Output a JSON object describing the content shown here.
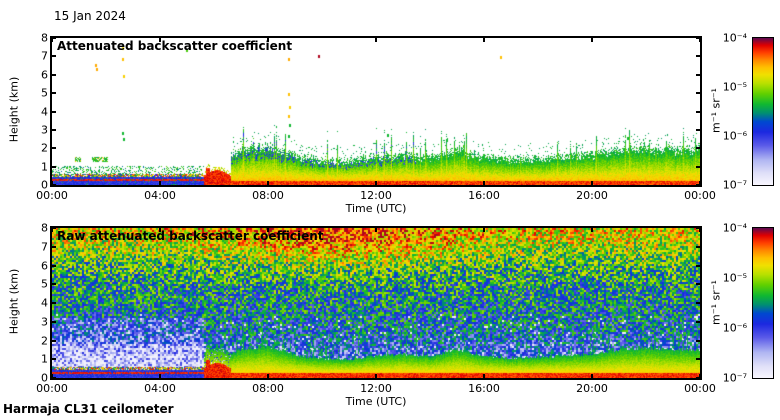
{
  "page": {
    "date_label": "15 Jan 2024",
    "footer_label": "Harmaja CL31 ceilometer",
    "background": "#ffffff"
  },
  "axes": {
    "x_label": "Time (UTC)",
    "y_label": "Height (km)",
    "x_ticks": [
      "00:00",
      "04:00",
      "08:00",
      "12:00",
      "16:00",
      "20:00",
      "00:00"
    ],
    "y_ticks": [
      "0",
      "1",
      "2",
      "3",
      "4",
      "5",
      "6",
      "7",
      "8"
    ]
  },
  "colorbar": {
    "tick_labels": [
      "10⁻⁴",
      "10⁻⁵",
      "10⁻⁶",
      "10⁻⁷"
    ],
    "unit_label": "m⁻¹ sr⁻¹"
  },
  "panels": [
    {
      "title": "Attenuated backscatter coefficient"
    },
    {
      "title": "Raw attenuated backscatter coefficient"
    }
  ],
  "chart_data": [
    {
      "type": "heatmap",
      "title": "Attenuated backscatter coefficient",
      "xlabel": "Time (UTC)",
      "ylabel": "Height (km)",
      "x_range_hours": [
        0,
        24
      ],
      "x_tick_labels": [
        "00:00",
        "04:00",
        "08:00",
        "12:00",
        "16:00",
        "20:00",
        "00:00"
      ],
      "y_range_km": [
        0,
        8
      ],
      "color_scale": {
        "type": "log",
        "min": 1e-07,
        "max": 0.0001,
        "unit": "m⁻¹ sr⁻¹"
      },
      "colormap_stops": [
        [
          0.0,
          "#f8f6fe"
        ],
        [
          0.08,
          "#e0e0f8"
        ],
        [
          0.17,
          "#b0b6f2"
        ],
        [
          0.27,
          "#5a5ae8"
        ],
        [
          0.36,
          "#1c28e0"
        ],
        [
          0.43,
          "#0048d0"
        ],
        [
          0.49,
          "#009070"
        ],
        [
          0.55,
          "#10b830"
        ],
        [
          0.62,
          "#60d000"
        ],
        [
          0.69,
          "#b8e000"
        ],
        [
          0.75,
          "#f0e000"
        ],
        [
          0.8,
          "#ffc000"
        ],
        [
          0.85,
          "#ff8800"
        ],
        [
          0.9,
          "#ff4000"
        ],
        [
          0.95,
          "#e00000"
        ],
        [
          1.0,
          "#5c0a50"
        ]
      ],
      "hours": [
        0,
        1,
        2,
        3,
        4,
        5,
        6,
        7,
        8,
        9,
        10,
        11,
        12,
        13,
        14,
        15,
        16,
        17,
        18,
        19,
        20,
        21,
        22,
        23,
        24
      ],
      "boundary_layer_top_km": [
        0.95,
        0.95,
        0.95,
        0.9,
        0.9,
        0.85,
        1.0,
        1.8,
        2.0,
        1.45,
        1.2,
        1.15,
        1.4,
        1.5,
        1.35,
        1.8,
        1.35,
        1.25,
        1.3,
        1.4,
        1.5,
        1.8,
        1.9,
        1.75,
        1.8
      ],
      "surface_red_layer_top_km": 0.25,
      "high_specks": [
        [
          1.6,
          6.6,
          0.82
        ],
        [
          1.62,
          6.35,
          0.82
        ],
        [
          2.6,
          7.5,
          0.76
        ],
        [
          2.6,
          6.9,
          0.8
        ],
        [
          2.62,
          6.0,
          0.78
        ],
        [
          2.6,
          2.9,
          0.55
        ],
        [
          2.62,
          2.55,
          0.55
        ],
        [
          4.95,
          7.4,
          0.6
        ],
        [
          8.75,
          6.9,
          0.82
        ],
        [
          8.75,
          5.0,
          0.8
        ],
        [
          8.77,
          4.3,
          0.78
        ],
        [
          8.75,
          3.8,
          0.8
        ],
        [
          8.77,
          3.3,
          0.55
        ],
        [
          8.75,
          2.7,
          0.55
        ],
        [
          9.85,
          7.1,
          0.97
        ],
        [
          12.4,
          2.75,
          0.55
        ],
        [
          14.6,
          2.5,
          0.55
        ],
        [
          16.6,
          7.0,
          0.8
        ],
        [
          21.3,
          2.6,
          0.55
        ]
      ],
      "features": {
        "pre_dawn": "Stratified aerosol below ~1 km (00:00-05:30) with strong red lamina near 0.25-0.3 km embedded in blue layer",
        "transition": "Very strong near-surface backscatter (fog/precipitation) ~05:30-06:30",
        "daytime": "Convective boundary layer from ~06:30 onward, red-orange near surface grading to ragged green tops 1-2.2 km",
        "clear_air": "White (below 1e-7) above ~2.5 km with isolated specks at 3-7.5 km"
      },
      "render_seed": 7
    },
    {
      "type": "heatmap",
      "title": "Raw attenuated backscatter coefficient",
      "xlabel": "Time (UTC)",
      "ylabel": "Height (km)",
      "x_range_hours": [
        0,
        24
      ],
      "x_tick_labels": [
        "00:00",
        "04:00",
        "08:00",
        "12:00",
        "16:00",
        "20:00",
        "00:00"
      ],
      "y_range_km": [
        0,
        8
      ],
      "color_scale": {
        "type": "log",
        "min": 1e-07,
        "max": 0.0001,
        "unit": "m⁻¹ sr⁻¹"
      },
      "colormap_stops": [
        [
          0.0,
          "#f8f6fe"
        ],
        [
          0.08,
          "#e0e0f8"
        ],
        [
          0.17,
          "#b0b6f2"
        ],
        [
          0.27,
          "#5a5ae8"
        ],
        [
          0.36,
          "#1c28e0"
        ],
        [
          0.43,
          "#0048d0"
        ],
        [
          0.49,
          "#009070"
        ],
        [
          0.55,
          "#10b830"
        ],
        [
          0.62,
          "#60d000"
        ],
        [
          0.69,
          "#b8e000"
        ],
        [
          0.75,
          "#f0e000"
        ],
        [
          0.8,
          "#ffc000"
        ],
        [
          0.85,
          "#ff8800"
        ],
        [
          0.9,
          "#ff4000"
        ],
        [
          0.95,
          "#e00000"
        ],
        [
          1.0,
          "#5c0a50"
        ]
      ],
      "hours": [
        0,
        1,
        2,
        3,
        4,
        5,
        6,
        7,
        8,
        9,
        10,
        11,
        12,
        13,
        14,
        15,
        16,
        17,
        18,
        19,
        20,
        21,
        22,
        23,
        24
      ],
      "boundary_layer_top_km": [
        0.95,
        0.95,
        0.95,
        0.9,
        0.9,
        0.85,
        1.0,
        1.8,
        2.0,
        1.45,
        1.2,
        1.15,
        1.4,
        1.5,
        1.35,
        1.8,
        1.35,
        1.25,
        1.3,
        1.4,
        1.5,
        1.8,
        1.9,
        1.75,
        1.8
      ],
      "noise": {
        "base": 0.34,
        "height_gain": 0.26,
        "upper_boost": 0.06,
        "low_blue_reduction": 0.16,
        "amplitude": 0.42,
        "white_dot_prob": 0.05
      },
      "orange_patch": {
        "center_hour": 10.5,
        "width_hours": 4.2,
        "strength": 0.26,
        "base_fraction": 0.35
      },
      "clear_hole_pre06_km": [
        0.4,
        1.8
      ],
      "plume_top_scale": 0.85,
      "wisp": {
        "prob_morning": 0.28,
        "prob_other": 0.07,
        "hours": [
          6.4,
          10.6
        ]
      },
      "features": {
        "noise_field": "Entire frame filled with range-dependent speckle noise: blue/white near surface, green mid-levels, yellow-green aloft, orange-red patch near 6-8 km strongest ~07:00-14:00",
        "clear_hole": "Near-white low-noise pocket 0.4-1.8 km before ~05:30",
        "surface": "Same surface structures as averaged panel: blue band with red lamina before 05:30, red fog burst 05:30-06:30, then red-orange surface band with green plume wisps"
      },
      "render_seed": 11
    }
  ]
}
